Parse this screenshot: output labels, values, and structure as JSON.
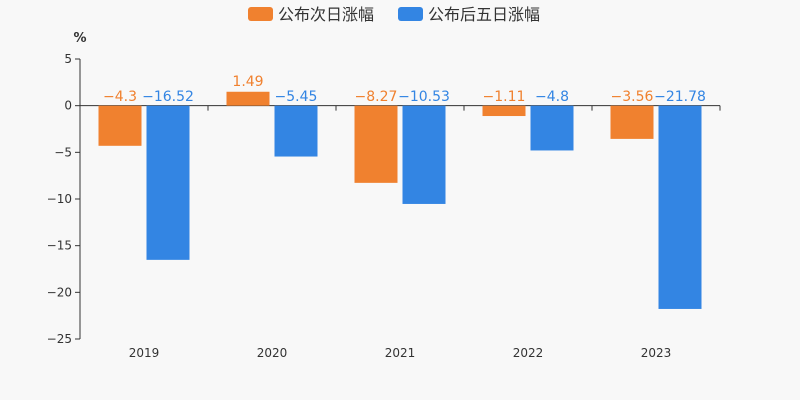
{
  "chart_data": {
    "type": "bar",
    "categories": [
      "2019",
      "2020",
      "2021",
      "2022",
      "2023"
    ],
    "series": [
      {
        "name": "公布次日涨幅",
        "color": "#f0812f",
        "values": [
          -4.3,
          1.49,
          -8.27,
          -1.11,
          -3.56
        ],
        "labels": [
          "−4.3",
          "1.49",
          "−8.27",
          "−1.11",
          "−3.56"
        ]
      },
      {
        "name": "公布后五日涨幅",
        "color": "#3385e3",
        "values": [
          -16.52,
          -5.45,
          -10.53,
          -4.8,
          -21.78
        ],
        "labels": [
          "−16.52",
          "−5.45",
          "−10.53",
          "−4.8",
          "−21.78"
        ]
      }
    ],
    "ylabel": "%",
    "ylim": [
      -25,
      5
    ],
    "yticks": [
      5,
      0,
      -5,
      -10,
      -15,
      -20,
      -25
    ],
    "ytick_labels": [
      "5",
      "0",
      "−5",
      "−10",
      "−15",
      "−20",
      "−25"
    ],
    "legend_position": "top-center",
    "grid": false
  }
}
